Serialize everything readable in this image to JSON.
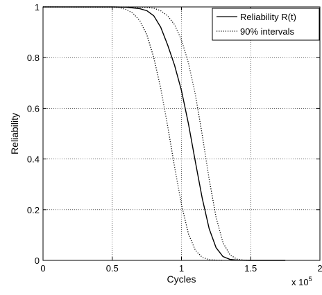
{
  "chart_data": {
    "type": "line",
    "xlabel": "Cycles",
    "ylabel": "Reliability",
    "x_multiplier": "x 10",
    "x_multiplier_exp": "5",
    "xlim": [
      0,
      2
    ],
    "ylim": [
      0,
      1
    ],
    "x_ticks": [
      0,
      0.5,
      1,
      1.5,
      2
    ],
    "x_tick_labels": [
      "0",
      "0.5",
      "1",
      "1.5",
      "2"
    ],
    "y_ticks": [
      0,
      0.2,
      0.4,
      0.6,
      0.8,
      1
    ],
    "y_tick_labels": [
      "0",
      "0.2",
      "0.4",
      "0.6",
      "0.8",
      "1"
    ],
    "grid": true,
    "legend_position": "top-right",
    "series": [
      {
        "name": "Reliability R(t)",
        "style": "solid",
        "color": "#000000",
        "x": [
          0,
          0.5,
          0.6,
          0.7,
          0.75,
          0.8,
          0.85,
          0.9,
          0.95,
          1.0,
          1.05,
          1.1,
          1.15,
          1.2,
          1.25,
          1.3,
          1.35,
          1.4,
          1.5,
          1.75
        ],
        "y": [
          1,
          1,
          0.999,
          0.993,
          0.985,
          0.965,
          0.92,
          0.85,
          0.77,
          0.67,
          0.54,
          0.39,
          0.245,
          0.125,
          0.05,
          0.015,
          0.004,
          0.001,
          0,
          0
        ]
      },
      {
        "name": "90% intervals",
        "style": "dotted",
        "color": "#000000",
        "x": [
          0,
          0.5,
          0.55,
          0.6,
          0.65,
          0.7,
          0.75,
          0.8,
          0.85,
          0.9,
          0.95,
          1.0,
          1.05,
          1.1,
          1.15,
          1.2,
          1.25,
          1.3
        ],
        "y": [
          1,
          0.999,
          0.997,
          0.99,
          0.975,
          0.945,
          0.89,
          0.8,
          0.68,
          0.53,
          0.37,
          0.22,
          0.105,
          0.04,
          0.012,
          0.003,
          0.001,
          0
        ]
      },
      {
        "name": "",
        "style": "dotted",
        "color": "#000000",
        "x": [
          0,
          0.5,
          0.6,
          0.7,
          0.75,
          0.8,
          0.85,
          0.9,
          0.95,
          1.0,
          1.05,
          1.1,
          1.15,
          1.2,
          1.25,
          1.3,
          1.35,
          1.4,
          1.45,
          1.5
        ],
        "y": [
          1,
          1,
          1,
          0.999,
          0.998,
          0.995,
          0.985,
          0.965,
          0.93,
          0.87,
          0.78,
          0.655,
          0.495,
          0.32,
          0.17,
          0.07,
          0.022,
          0.005,
          0.001,
          0
        ]
      }
    ]
  }
}
